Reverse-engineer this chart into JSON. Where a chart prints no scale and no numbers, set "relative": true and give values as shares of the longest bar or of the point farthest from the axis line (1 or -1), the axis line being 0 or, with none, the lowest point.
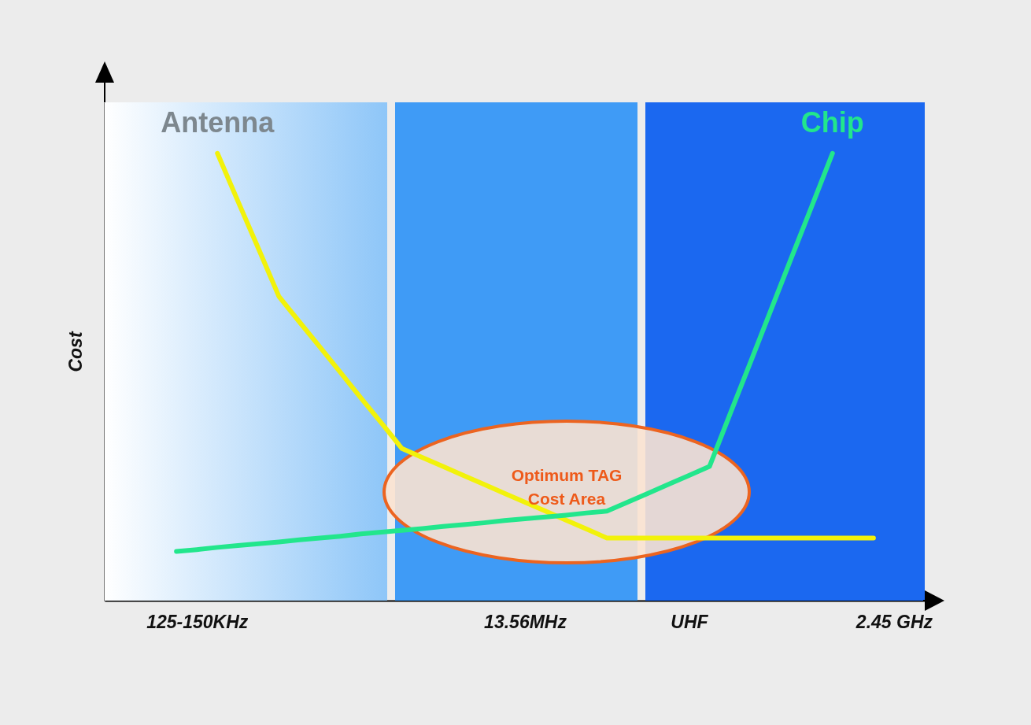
{
  "chart_data": {
    "type": "line",
    "relative": true,
    "ylabel": "Cost",
    "categories": [
      null,
      null,
      null,
      null,
      "125-150KHz",
      null,
      null,
      null,
      null,
      null,
      null,
      null,
      null,
      null,
      null,
      null,
      null,
      null,
      null,
      null,
      "13.56MHz",
      null,
      null,
      null,
      null,
      null,
      null,
      null,
      "UHF",
      null,
      null,
      null,
      null,
      null,
      null,
      null,
      null,
      null,
      "2.45 GHz",
      null
    ],
    "grid": false,
    "legend": false,
    "marker": "none",
    "series": [
      {
        "name": "Antenna",
        "color": "#f2f20a",
        "values": [
          null,
          null,
          null,
          null,
          null,
          1,
          0.893,
          0.787,
          0.68,
          0.623,
          0.567,
          0.51,
          0.453,
          0.397,
          0.34,
          0.32,
          0.3,
          0.28,
          0.26,
          0.24,
          0.22,
          0.2,
          0.18,
          0.16,
          0.14,
          0.14,
          0.14,
          0.14,
          0.14,
          0.14,
          0.14,
          0.14,
          0.14,
          0.14,
          0.14,
          0.14,
          0.14,
          0.14,
          null,
          null
        ]
      },
      {
        "name": "Chip",
        "color": "#22e68c",
        "values": [
          null,
          null,
          null,
          0.11,
          0.114,
          0.119,
          0.123,
          0.127,
          0.131,
          0.136,
          0.14,
          0.144,
          0.149,
          0.153,
          0.157,
          0.161,
          0.166,
          0.17,
          0.174,
          0.179,
          0.183,
          0.187,
          0.191,
          0.196,
          0.2,
          0.22,
          0.24,
          0.26,
          0.28,
          0.3,
          0.417,
          0.533,
          0.65,
          0.767,
          0.883,
          1,
          null,
          null,
          null,
          null
        ]
      }
    ],
    "annotations": [
      "Optimum TAG\nCost Area"
    ]
  }
}
